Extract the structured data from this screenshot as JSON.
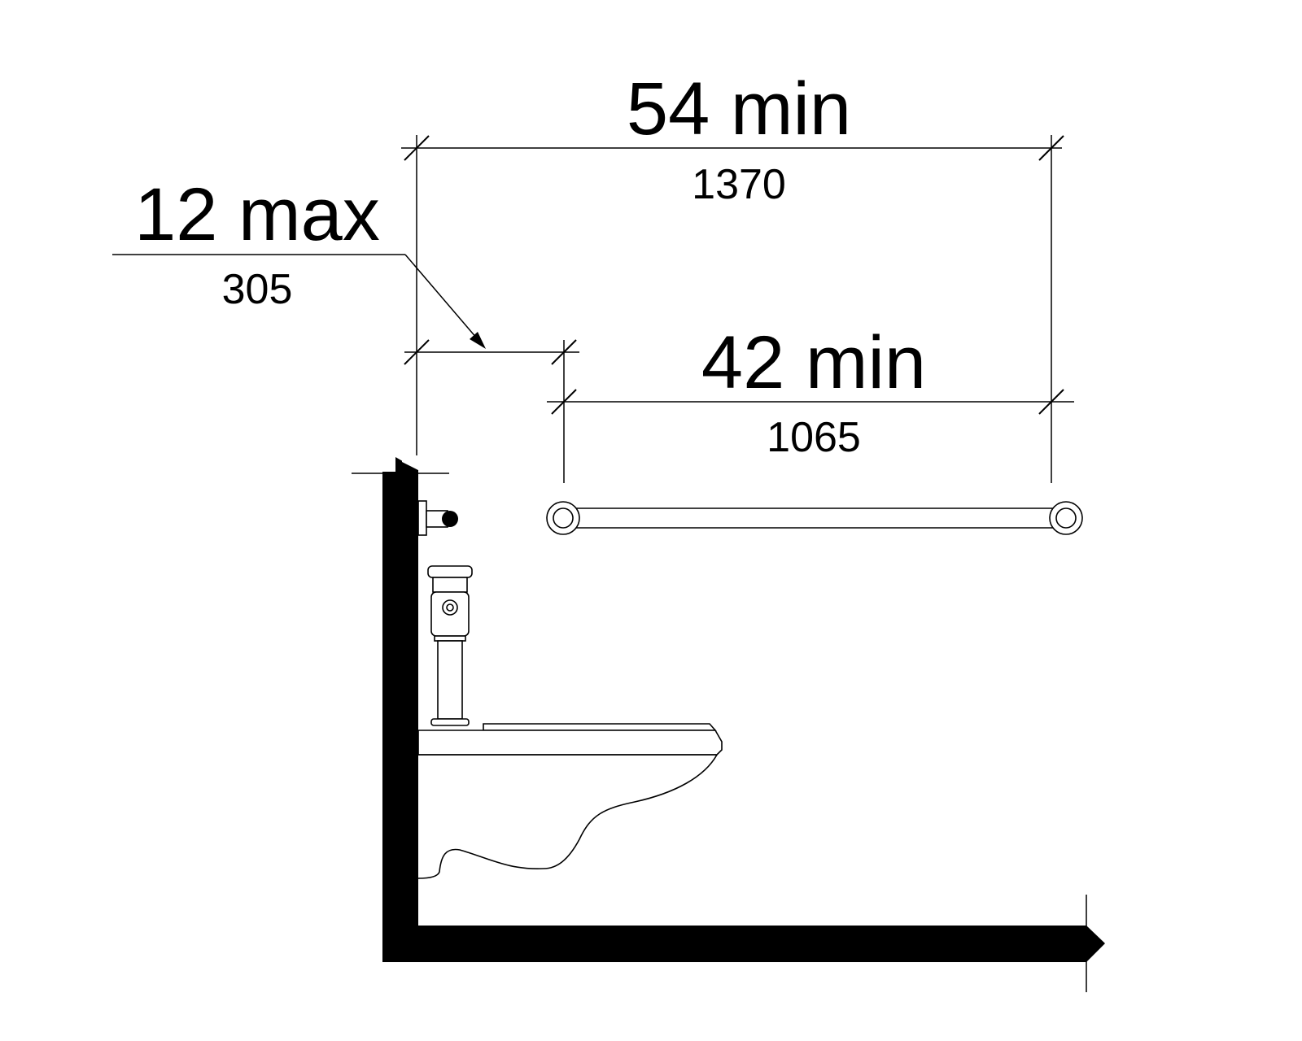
{
  "dimensions": {
    "overall": {
      "imperial": "54 min",
      "metric": "1370"
    },
    "offset": {
      "imperial": "12 max",
      "metric": "305"
    },
    "grab_bar": {
      "imperial": "42 min",
      "metric": "1065"
    }
  }
}
